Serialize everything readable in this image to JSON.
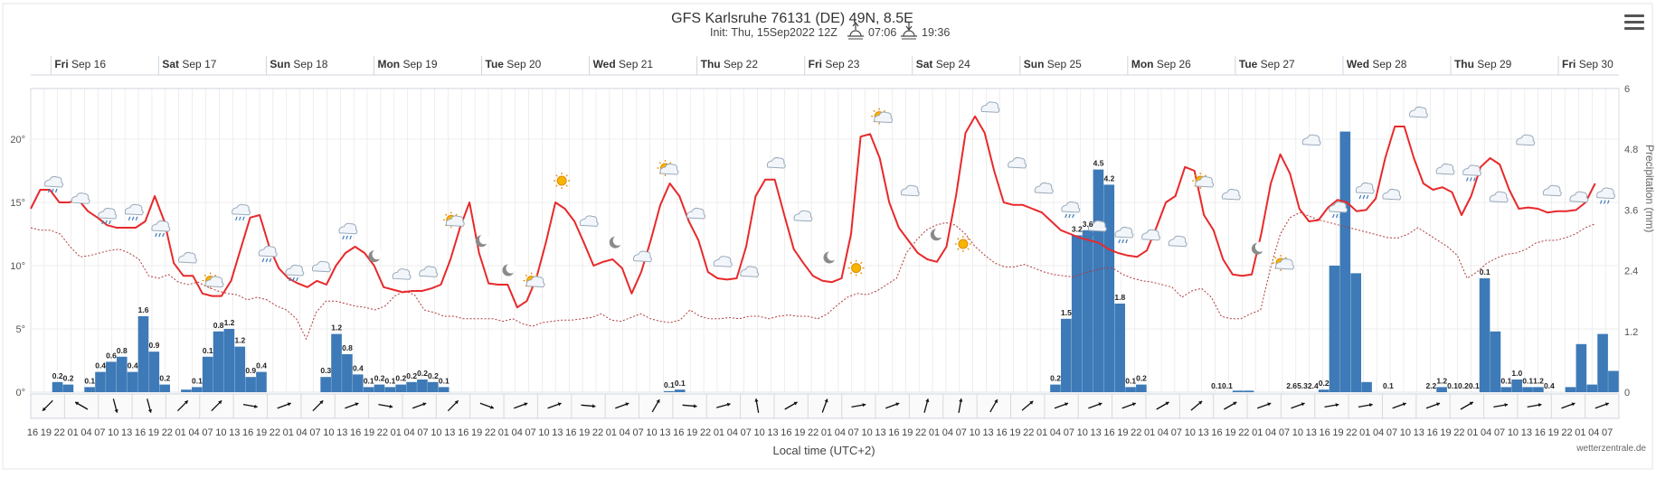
{
  "header": {
    "title": "GFS Karlsruhe 76131 (DE) 49N, 8.5E",
    "init": "Init: Thu, 15Sep2022 12Z",
    "sunrise": "07:06",
    "sunset": "19:36"
  },
  "footer": {
    "xlabel": "Local time (UTC+2)",
    "credit": "wetterzentrale.de"
  },
  "colors": {
    "temp": "#e8292b",
    "dew": "#b03a3a",
    "precip": "#3d7ab7",
    "grid": "#e3e3e3",
    "frame": "#cfd4de"
  },
  "chart_data": {
    "type": "bar+line",
    "title": "GFS Karlsruhe 76131 (DE) 49N, 8.5E",
    "x_start_hour": 16,
    "step_hours": 3,
    "x_count": 118,
    "y_left": {
      "min": 0,
      "max": 24,
      "ticks": [
        0,
        5,
        10,
        15,
        20
      ],
      "tick_labels": [
        "0°",
        "5°",
        "10°",
        "15°",
        "20°"
      ]
    },
    "y_right": {
      "min": 0,
      "max": 6,
      "ticks": [
        0,
        1.2,
        2.4,
        3.6,
        4.8,
        6
      ],
      "label": "Precipitation (mm)"
    },
    "day_labels": [
      {
        "day": "Fri",
        "date": "Sep 16",
        "index": 3
      },
      {
        "day": "Sat",
        "date": "Sep 17",
        "index": 11
      },
      {
        "day": "Sun",
        "date": "Sep 18",
        "index": 19
      },
      {
        "day": "Mon",
        "date": "Sep 19",
        "index": 27
      },
      {
        "day": "Tue",
        "date": "Sep 20",
        "index": 35
      },
      {
        "day": "Wed",
        "date": "Sep 21",
        "index": 43
      },
      {
        "day": "Thu",
        "date": "Sep 22",
        "index": 51
      },
      {
        "day": "Fri",
        "date": "Sep 23",
        "index": 59
      },
      {
        "day": "Sat",
        "date": "Sep 24",
        "index": 67
      },
      {
        "day": "Sun",
        "date": "Sep 25",
        "index": 75
      },
      {
        "day": "Mon",
        "date": "Sep 26",
        "index": 83
      },
      {
        "day": "Tue",
        "date": "Sep 27",
        "index": 91
      },
      {
        "day": "Wed",
        "date": "Sep 28",
        "index": 99
      },
      {
        "day": "Thu",
        "date": "Sep 29",
        "index": 107
      },
      {
        "day": "Fri",
        "date": "Sep 30",
        "index": 115
      }
    ],
    "temperature": [
      14.5,
      16,
      16,
      15,
      15,
      15.2,
      14.3,
      13.8,
      13.2,
      13,
      13,
      13,
      13.5,
      15.5,
      13.5,
      10.2,
      9.2,
      9.2,
      7.8,
      7.6,
      7.6,
      8.8,
      11.3,
      13.8,
      14,
      11.5,
      9.8,
      9,
      8.6,
      8.3,
      8.8,
      8.5,
      10,
      11,
      11.5,
      11,
      10,
      8.3,
      8.1,
      7.9,
      8,
      8,
      8.2,
      8.5,
      10.5,
      13,
      15,
      11,
      8.6,
      8.5,
      8.5,
      6.7,
      7.2,
      9,
      11.8,
      15,
      14.5,
      13.5,
      11.8,
      10,
      10.3,
      10.5,
      9.8,
      7.8,
      9.5,
      12,
      14.8,
      16.5,
      15.5,
      13.5,
      12,
      9.5,
      9,
      8.9,
      9,
      11.5,
      15.5,
      16.8,
      16.8,
      14,
      11.3,
      10.2,
      9.2,
      8.8,
      8.7,
      9,
      12.5,
      20.2,
      20.4,
      18.5,
      15,
      13,
      12,
      11,
      10.5,
      10.3,
      11.5,
      15.5,
      20.5,
      21.8,
      20.5,
      17.5,
      15,
      14.8,
      14.8,
      14.5,
      14.2,
      13.5,
      12.8,
      12.5,
      12.2,
      12,
      11.8,
      11.3,
      11,
      10.8,
      10.7,
      11.2,
      13,
      15,
      15.5,
      17.8,
      17.5,
      14,
      12.8,
      10.5,
      9.3,
      9.2,
      9.3,
      12.5,
      16.5,
      18.8,
      17.3,
      14.5,
      13.5,
      13.6,
      14.6,
      15.2,
      15,
      14.3,
      14.4,
      15.3,
      18.5,
      21,
      21,
      18.5,
      16.5,
      16,
      16.2,
      15.8,
      14,
      15.5,
      17.8,
      18.5,
      18,
      16,
      14.5,
      14.6,
      14.5,
      14.2,
      14.3,
      14.3,
      14.4,
      15,
      16.5
    ],
    "dewpoint": [
      13,
      12.8,
      12.8,
      12.5,
      11.5,
      10.7,
      10.8,
      11,
      11.2,
      11.3,
      11,
      10.5,
      9.2,
      9,
      9.3,
      8.7,
      8.5,
      8.7,
      8.3,
      8,
      7.8,
      7.7,
      7.3,
      7.5,
      7.3,
      6.8,
      6.5,
      5.8,
      4.2,
      6.3,
      7.2,
      7.2,
      7,
      6.8,
      6.7,
      6.5,
      6.8,
      7.6,
      8,
      7.7,
      6.5,
      6.3,
      6,
      6,
      5.8,
      5.8,
      5.8,
      5.8,
      5.6,
      5.8,
      5.4,
      5.2,
      5.5,
      5.6,
      5.7,
      5.7,
      5.8,
      5.9,
      6.2,
      5.7,
      5.6,
      5.9,
      6.2,
      5.8,
      5.6,
      5.5,
      5.7,
      6.5,
      6,
      5.8,
      5.8,
      5.9,
      5.8,
      6,
      6,
      5.8,
      6,
      6.1,
      6,
      6,
      5.8,
      6.2,
      6.9,
      7.5,
      7.8,
      7.7,
      8,
      8.5,
      9,
      11,
      12,
      12.8,
      13.2,
      13.4,
      13.2,
      12.5,
      11.5,
      10.8,
      10.2,
      9.9,
      9.9,
      10.1,
      9.8,
      9.5,
      9.3,
      9.2,
      9.1,
      9.4,
      9.6,
      9.8,
      9.8,
      9.3,
      9,
      8.8,
      8.7,
      8.5,
      8.3,
      7.5,
      8,
      8.2,
      7.5,
      6,
      5.8,
      5.8,
      6.2,
      6.5,
      9.8,
      12.5,
      13.8,
      14.2,
      13.9,
      13.6,
      13.4,
      13.2,
      13,
      12.8,
      12.6,
      12.4,
      12.2,
      12.2,
      12.5,
      13,
      12.5,
      12,
      11.5,
      10.8,
      9,
      9.5,
      10.2,
      10.6,
      10.9,
      11,
      11.3,
      11.8,
      12,
      12,
      12.2,
      12.5,
      13,
      13.3
    ],
    "precip_bars": [
      0,
      0,
      0.2,
      0.15,
      0,
      0.1,
      0.4,
      0.6,
      0.7,
      0.4,
      1.5,
      0.8,
      0.15,
      0,
      0.05,
      0.1,
      0.7,
      1.2,
      1.25,
      0.9,
      0.3,
      0.4,
      0,
      0,
      0,
      0,
      0,
      0.3,
      1.15,
      0.75,
      0.35,
      0.1,
      0.15,
      0.1,
      0.15,
      0.2,
      0.25,
      0.2,
      0.1,
      0,
      0,
      0,
      0,
      0,
      0,
      0,
      0,
      0,
      0,
      0,
      0,
      0,
      0,
      0,
      0,
      0,
      0,
      0,
      0,
      0.02,
      0.05,
      0,
      0,
      0,
      0,
      0,
      0,
      0,
      0,
      0,
      0,
      0,
      0,
      0,
      0,
      0,
      0,
      0,
      0,
      0,
      0,
      0,
      0,
      0,
      0,
      0,
      0,
      0,
      0,
      0,
      0,
      0,
      0,
      0,
      0,
      0.15,
      1.45,
      3.1,
      3.2,
      4.4,
      4.1,
      1.75,
      0.1,
      0.15,
      0,
      0,
      0,
      0,
      0,
      0,
      0,
      0,
      0.03,
      0.03,
      0,
      0,
      0,
      0,
      0,
      0,
      0.05,
      2.5,
      5.15,
      2.35,
      0.2,
      0,
      0,
      0,
      0,
      0,
      0,
      0.1,
      0,
      0,
      0,
      2.25,
      1.2,
      0.1,
      0.25,
      0.1,
      0.1,
      0,
      0,
      0.1,
      0.95,
      0.15,
      1.15,
      0.42
    ],
    "precip_labels": [
      {
        "index": 2,
        "text": "0.2"
      },
      {
        "index": 3,
        "text": "0.2"
      },
      {
        "index": 5,
        "text": "0.1"
      },
      {
        "index": 6,
        "text": "0.4"
      },
      {
        "index": 7,
        "text": "0.6"
      },
      {
        "index": 8,
        "text": "0.8"
      },
      {
        "index": 9,
        "text": "0.4"
      },
      {
        "index": 10,
        "text": "1.6"
      },
      {
        "index": 11,
        "text": "0.9"
      },
      {
        "index": 12,
        "text": "0.2"
      },
      {
        "index": 15,
        "text": "0.1"
      },
      {
        "index": 16,
        "text": "0.1"
      },
      {
        "index": 17,
        "text": "0.8"
      },
      {
        "index": 18,
        "text": "1.2"
      },
      {
        "index": 19,
        "text": "1.2"
      },
      {
        "index": 20,
        "text": "0.9"
      },
      {
        "index": 21,
        "text": "0.4"
      },
      {
        "index": 27,
        "text": "0.3"
      },
      {
        "index": 28,
        "text": "1.2"
      },
      {
        "index": 29,
        "text": "0.8"
      },
      {
        "index": 30,
        "text": "0.4"
      },
      {
        "index": 31,
        "text": "0.1"
      },
      {
        "index": 32,
        "text": "0.2"
      },
      {
        "index": 33,
        "text": "0.1"
      },
      {
        "index": 34,
        "text": "0.2"
      },
      {
        "index": 35,
        "text": "0.2"
      },
      {
        "index": 36,
        "text": "0.2"
      },
      {
        "index": 37,
        "text": "0.2"
      },
      {
        "index": 38,
        "text": "0.1"
      },
      {
        "index": 59,
        "text": "0.1"
      },
      {
        "index": 60,
        "text": "0.1"
      },
      {
        "index": 95,
        "text": "0.2"
      },
      {
        "index": 96,
        "text": "1.5"
      },
      {
        "index": 97,
        "text": "3.2"
      },
      {
        "index": 98,
        "text": "3.6"
      },
      {
        "index": 99,
        "text": "4.5"
      },
      {
        "index": 100,
        "text": "4.2"
      },
      {
        "index": 101,
        "text": "1.8"
      },
      {
        "index": 102,
        "text": "0.1"
      },
      {
        "index": 103,
        "text": "0.2"
      },
      {
        "index": 110,
        "text": "0.1"
      },
      {
        "index": 111,
        "text": "0.1"
      },
      {
        "index": 117,
        "text": "2.6"
      },
      {
        "index": 118,
        "text": "5.3"
      },
      {
        "index": 119,
        "text": "2.4"
      },
      {
        "index": 120,
        "text": "0.2"
      },
      {
        "index": 126,
        "text": "0.1"
      },
      {
        "index": 130,
        "text": "2.2"
      },
      {
        "index": 131,
        "text": "1.2"
      },
      {
        "index": 132,
        "text": "0.1"
      },
      {
        "index": 133,
        "text": "0.2"
      },
      {
        "index": 134,
        "text": "0.1"
      },
      {
        "index": 135,
        "text": "0.1"
      },
      {
        "index": 137,
        "text": "0.1"
      },
      {
        "index": 138,
        "text": "1.0"
      },
      {
        "index": 139,
        "text": "0.1"
      },
      {
        "index": 140,
        "text": "1.2"
      },
      {
        "index": 141,
        "text": "0.4"
      }
    ],
    "wind_dirs": [
      135,
      210,
      75,
      75,
      -45,
      -45,
      10,
      -20,
      -45,
      -20,
      10,
      -20,
      -45,
      20,
      -20,
      -20,
      5,
      -20,
      -60,
      5,
      -15,
      -100,
      -30,
      -70,
      -10,
      -20,
      -75,
      -80,
      -60,
      -40,
      -20,
      -20,
      -20,
      -30,
      -40,
      -30,
      -20,
      -20,
      -10,
      -10,
      -20,
      -20,
      -30,
      -10,
      -10,
      -20,
      -20
    ],
    "weather_icons": [
      {
        "type": "rain",
        "temp": 16.5
      },
      {
        "type": "cloud",
        "temp": 15.2
      },
      {
        "type": "rain",
        "temp": 14
      },
      {
        "type": "rain",
        "temp": 14.3
      },
      {
        "type": "rain",
        "temp": 13
      },
      {
        "type": "cloud",
        "temp": 10.5
      },
      {
        "type": "partly",
        "temp": 8.6
      },
      {
        "type": "rain",
        "temp": 14.3
      },
      {
        "type": "rain",
        "temp": 11
      },
      {
        "type": "rain",
        "temp": 9.5
      },
      {
        "type": "cloud",
        "temp": 9.8
      },
      {
        "type": "rain",
        "temp": 12.8
      },
      {
        "type": "moon",
        "temp": 10.6
      },
      {
        "type": "cloud",
        "temp": 9.2
      },
      {
        "type": "cloud",
        "temp": 9.4
      },
      {
        "type": "partly",
        "temp": 13.4
      },
      {
        "type": "moon",
        "temp": 11.8
      },
      {
        "type": "moon",
        "temp": 9.5
      },
      {
        "type": "partly",
        "temp": 8.6
      },
      {
        "type": "sun",
        "temp": 16.5
      },
      {
        "type": "cloud",
        "temp": 13.4
      },
      {
        "type": "moon",
        "temp": 11.7
      },
      {
        "type": "cloud",
        "temp": 10.6
      },
      {
        "type": "partly",
        "temp": 17.5
      },
      {
        "type": "cloud",
        "temp": 14
      },
      {
        "type": "cloud",
        "temp": 10.2
      },
      {
        "type": "cloud",
        "temp": 9.4
      },
      {
        "type": "cloud",
        "temp": 18
      },
      {
        "type": "cloud",
        "temp": 13.8
      },
      {
        "type": "moon",
        "temp": 10.5
      },
      {
        "type": "sun",
        "temp": 9.6
      },
      {
        "type": "partly",
        "temp": 21.6
      },
      {
        "type": "cloud",
        "temp": 15.8
      },
      {
        "type": "moon",
        "temp": 12.3
      },
      {
        "type": "sun",
        "temp": 11.5
      },
      {
        "type": "cloud",
        "temp": 22.4
      },
      {
        "type": "cloud",
        "temp": 18
      },
      {
        "type": "cloud",
        "temp": 16
      },
      {
        "type": "rain",
        "temp": 14.5
      },
      {
        "type": "rain",
        "temp": 13
      },
      {
        "type": "rain",
        "temp": 12.5
      },
      {
        "type": "cloud",
        "temp": 12.3
      },
      {
        "type": "cloud",
        "temp": 11.8
      },
      {
        "type": "partly",
        "temp": 16.5
      },
      {
        "type": "cloud",
        "temp": 15.5
      },
      {
        "type": "moon",
        "temp": 11.2
      },
      {
        "type": "partly",
        "temp": 10
      },
      {
        "type": "cloud",
        "temp": 19.8
      },
      {
        "type": "rain",
        "temp": 14.5
      },
      {
        "type": "rain",
        "temp": 16
      },
      {
        "type": "cloud",
        "temp": 15.5
      },
      {
        "type": "cloud",
        "temp": 22
      },
      {
        "type": "cloud",
        "temp": 17.5
      },
      {
        "type": "rain",
        "temp": 17.4
      },
      {
        "type": "cloud",
        "temp": 15.3
      },
      {
        "type": "cloud",
        "temp": 19.8
      },
      {
        "type": "cloud",
        "temp": 15.8
      },
      {
        "type": "cloud",
        "temp": 15.3
      },
      {
        "type": "rain",
        "temp": 15.6
      }
    ]
  }
}
